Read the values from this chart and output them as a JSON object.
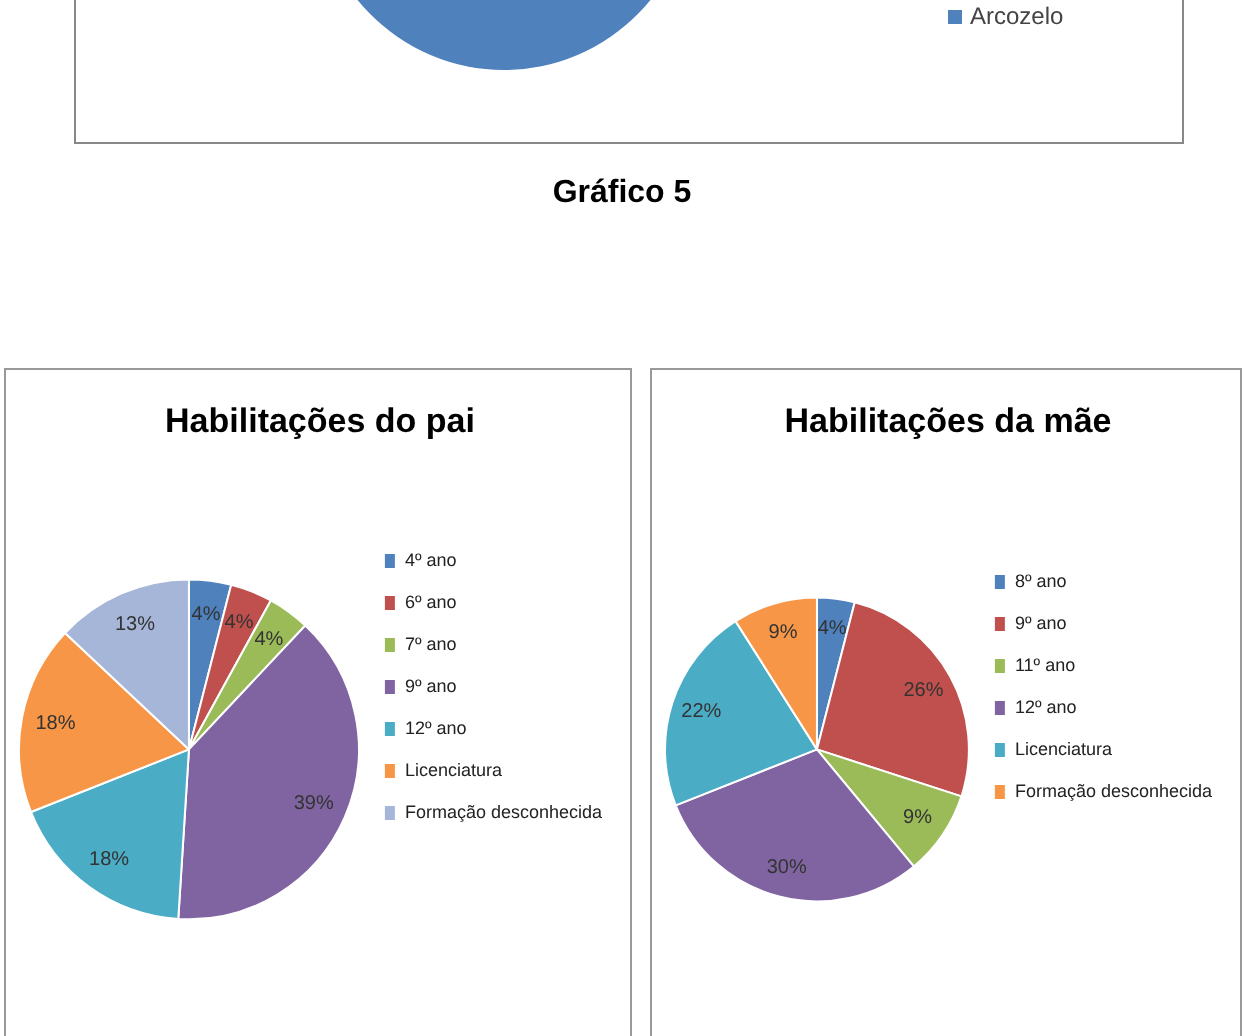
{
  "chart_data": [
    {
      "type": "other",
      "categories": [
        "Arcozelo"
      ],
      "colors": [
        "#4f81bd"
      ],
      "annotations": [
        "Gráfico 5"
      ]
    },
    {
      "type": "pie",
      "title": "Habilitações do pai",
      "categories": [
        "4º ano",
        "6º ano",
        "7º ano",
        "9º ano",
        "12º ano",
        "Licenciatura",
        "Formação desconhecida"
      ],
      "values": [
        4,
        4,
        4,
        39,
        18,
        18,
        13
      ],
      "value_labels": [
        "4%",
        "4%",
        "4%",
        "39%",
        "18%",
        "18%",
        "13%"
      ],
      "colors": [
        "#4f81bd",
        "#c0504d",
        "#9bbb59",
        "#8064a2",
        "#4bacc6",
        "#f79646",
        "#a5b6d9"
      ],
      "legend": "right"
    },
    {
      "type": "pie",
      "title": "Habilitações da mãe",
      "categories": [
        "8º ano",
        "9º ano",
        "11º ano",
        "12º ano",
        "Licenciatura",
        "Formação desconhecida"
      ],
      "values": [
        4,
        26,
        9,
        30,
        22,
        9
      ],
      "value_labels": [
        "4%",
        "26%",
        "9%",
        "30%",
        "22%",
        "9%"
      ],
      "colors": [
        "#4f81bd",
        "#c0504d",
        "#9bbb59",
        "#8064a2",
        "#4bacc6",
        "#f79646"
      ],
      "legend": "right"
    }
  ]
}
